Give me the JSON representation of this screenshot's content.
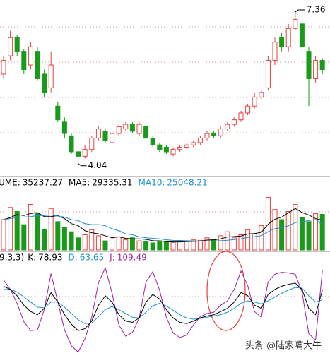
{
  "chart_data": [
    {
      "type": "candlestick",
      "ylim": [
        3.85,
        7.5
      ],
      "up_color": "#e8413e",
      "down_color": "#1a9a1a",
      "open": [
        6.0,
        6.4,
        6.8,
        6.5,
        6.2,
        6.5,
        6.0,
        5.7,
        5.3,
        4.95,
        4.65,
        4.3,
        4.2,
        4.35,
        4.6,
        4.75,
        4.5,
        4.7,
        4.8,
        4.9,
        4.7,
        4.85,
        4.6,
        4.45,
        4.4,
        4.25,
        4.35,
        4.4,
        4.45,
        4.5,
        4.6,
        4.7,
        4.65,
        4.8,
        4.9,
        5.0,
        5.15,
        5.3,
        5.5,
        5.7,
        6.3,
        6.8,
        6.6,
        7.0,
        7.1,
        6.5,
        5.9,
        6.3
      ],
      "high": [
        6.4,
        6.95,
        6.85,
        6.55,
        6.7,
        6.6,
        6.1,
        6.5,
        5.4,
        5.05,
        4.7,
        4.35,
        4.45,
        4.65,
        4.85,
        4.8,
        4.75,
        4.9,
        4.95,
        4.95,
        4.95,
        4.9,
        4.65,
        4.5,
        4.45,
        4.4,
        4.45,
        4.5,
        4.55,
        4.65,
        4.75,
        4.75,
        4.85,
        4.95,
        5.05,
        5.2,
        5.35,
        5.6,
        5.65,
        6.4,
        6.8,
        6.9,
        7.1,
        7.36,
        7.15,
        6.6,
        6.4,
        6.35
      ],
      "low": [
        5.9,
        6.3,
        6.4,
        6.0,
        6.1,
        5.85,
        5.5,
        5.6,
        4.95,
        4.6,
        4.25,
        4.04,
        4.15,
        4.3,
        4.55,
        4.5,
        4.45,
        4.65,
        4.75,
        4.7,
        4.65,
        4.55,
        4.4,
        4.3,
        4.25,
        4.2,
        4.3,
        4.35,
        4.4,
        4.45,
        4.55,
        4.6,
        4.6,
        4.75,
        4.85,
        4.95,
        5.1,
        5.25,
        5.45,
        5.65,
        6.2,
        6.5,
        6.5,
        6.95,
        6.5,
        5.3,
        5.8,
        6.0
      ],
      "close": [
        6.3,
        6.8,
        6.5,
        6.1,
        6.6,
        5.9,
        5.6,
        6.2,
        5.0,
        4.7,
        4.3,
        4.2,
        4.35,
        4.6,
        4.8,
        4.55,
        4.7,
        4.85,
        4.9,
        4.75,
        4.9,
        4.6,
        4.45,
        4.35,
        4.3,
        4.35,
        4.4,
        4.45,
        4.5,
        4.6,
        4.7,
        4.65,
        4.8,
        4.9,
        5.0,
        5.15,
        5.3,
        5.5,
        5.6,
        6.3,
        6.7,
        6.6,
        7.0,
        7.2,
        6.6,
        5.9,
        6.3,
        6.1
      ],
      "max_index": 43,
      "min_index": 11
    },
    {
      "type": "bar",
      "ylim": [
        0,
        60000
      ],
      "series": [
        {
          "name": "UME:",
          "color": "#000000",
          "values": [
            30000,
            42000,
            38000,
            25000,
            45000,
            36000,
            20000,
            41000,
            28000,
            22000,
            18000,
            12000,
            15000,
            20000,
            14000,
            9000,
            11000,
            13000,
            10000,
            12000,
            9000,
            8000,
            7000,
            9000,
            8000,
            7500,
            8000,
            9000,
            10000,
            9500,
            12000,
            10000,
            14000,
            18000,
            12000,
            15000,
            20000,
            16000,
            24000,
            52000,
            40000,
            30000,
            38000,
            45000,
            32000,
            28000,
            36000,
            35237.27
          ]
        },
        {
          "name": "MA5:",
          "color": "#000000",
          "values": [
            30000,
            32000,
            35000,
            34000,
            36000,
            37000,
            33000,
            33000,
            34000,
            31000,
            26000,
            24000,
            19000,
            17000,
            16000,
            14000,
            12000,
            13000,
            11500,
            11000,
            11000,
            10500,
            9200,
            9000,
            8200,
            7900,
            7900,
            8300,
            8500,
            8800,
            9800,
            10000,
            11000,
            12800,
            13300,
            13800,
            15800,
            16200,
            17400,
            25400,
            30400,
            32400,
            36800,
            41000,
            37000,
            34600,
            31000,
            29335.31
          ]
        },
        {
          "name": "MA10:",
          "color": "#1a8fd0",
          "values": [
            30000,
            31000,
            32000,
            32500,
            33000,
            34000,
            34000,
            34500,
            33500,
            32500,
            30000,
            29000,
            26000,
            25000,
            25000,
            24000,
            21000,
            19000,
            16000,
            15000,
            13000,
            12000,
            11500,
            11000,
            10000,
            9500,
            9400,
            9200,
            9000,
            8900,
            8800,
            8900,
            9200,
            9600,
            10300,
            11000,
            12400,
            13300,
            14000,
            18000,
            21000,
            22000,
            24000,
            27000,
            28000,
            29000,
            30000,
            25048.21
          ]
        }
      ]
    },
    {
      "type": "line",
      "title": "9,3,3)",
      "ylim": [
        -25,
        120
      ],
      "series": [
        {
          "name": "K:",
          "color": "#000000",
          "values": [
            85,
            80,
            70,
            55,
            45,
            40,
            50,
            75,
            60,
            40,
            25,
            15,
            18,
            30,
            55,
            70,
            60,
            40,
            30,
            28,
            35,
            60,
            72,
            65,
            48,
            35,
            28,
            26,
            30,
            35,
            38,
            40,
            45,
            50,
            60,
            75,
            70,
            55,
            50,
            72,
            80,
            85,
            88,
            90,
            80,
            50,
            40,
            78.93
          ]
        },
        {
          "name": "D:",
          "color": "#1a8fd0",
          "values": [
            80,
            80,
            76,
            68,
            60,
            52,
            51,
            60,
            60,
            52,
            42,
            32,
            26,
            27,
            37,
            48,
            53,
            48,
            42,
            36,
            35,
            44,
            54,
            58,
            54,
            47,
            40,
            35,
            33,
            34,
            36,
            38,
            40,
            44,
            50,
            58,
            62,
            60,
            57,
            62,
            68,
            74,
            79,
            83,
            82,
            70,
            60,
            63.65
          ]
        },
        {
          "name": "J:",
          "color": "#a020a0",
          "values": [
            95,
            80,
            58,
            29,
            15,
            16,
            48,
            105,
            60,
            16,
            -9,
            -19,
            2,
            36,
            91,
            114,
            74,
            24,
            6,
            12,
            35,
            92,
            108,
            79,
            36,
            11,
            4,
            8,
            24,
            37,
            42,
            44,
            55,
            62,
            80,
            109,
            86,
            45,
            36,
            92,
            104,
            107,
            106,
            104,
            76,
            10,
            0,
            109.49
          ]
        }
      ]
    }
  ],
  "watermark": "头条 @陆家嘴大牛"
}
